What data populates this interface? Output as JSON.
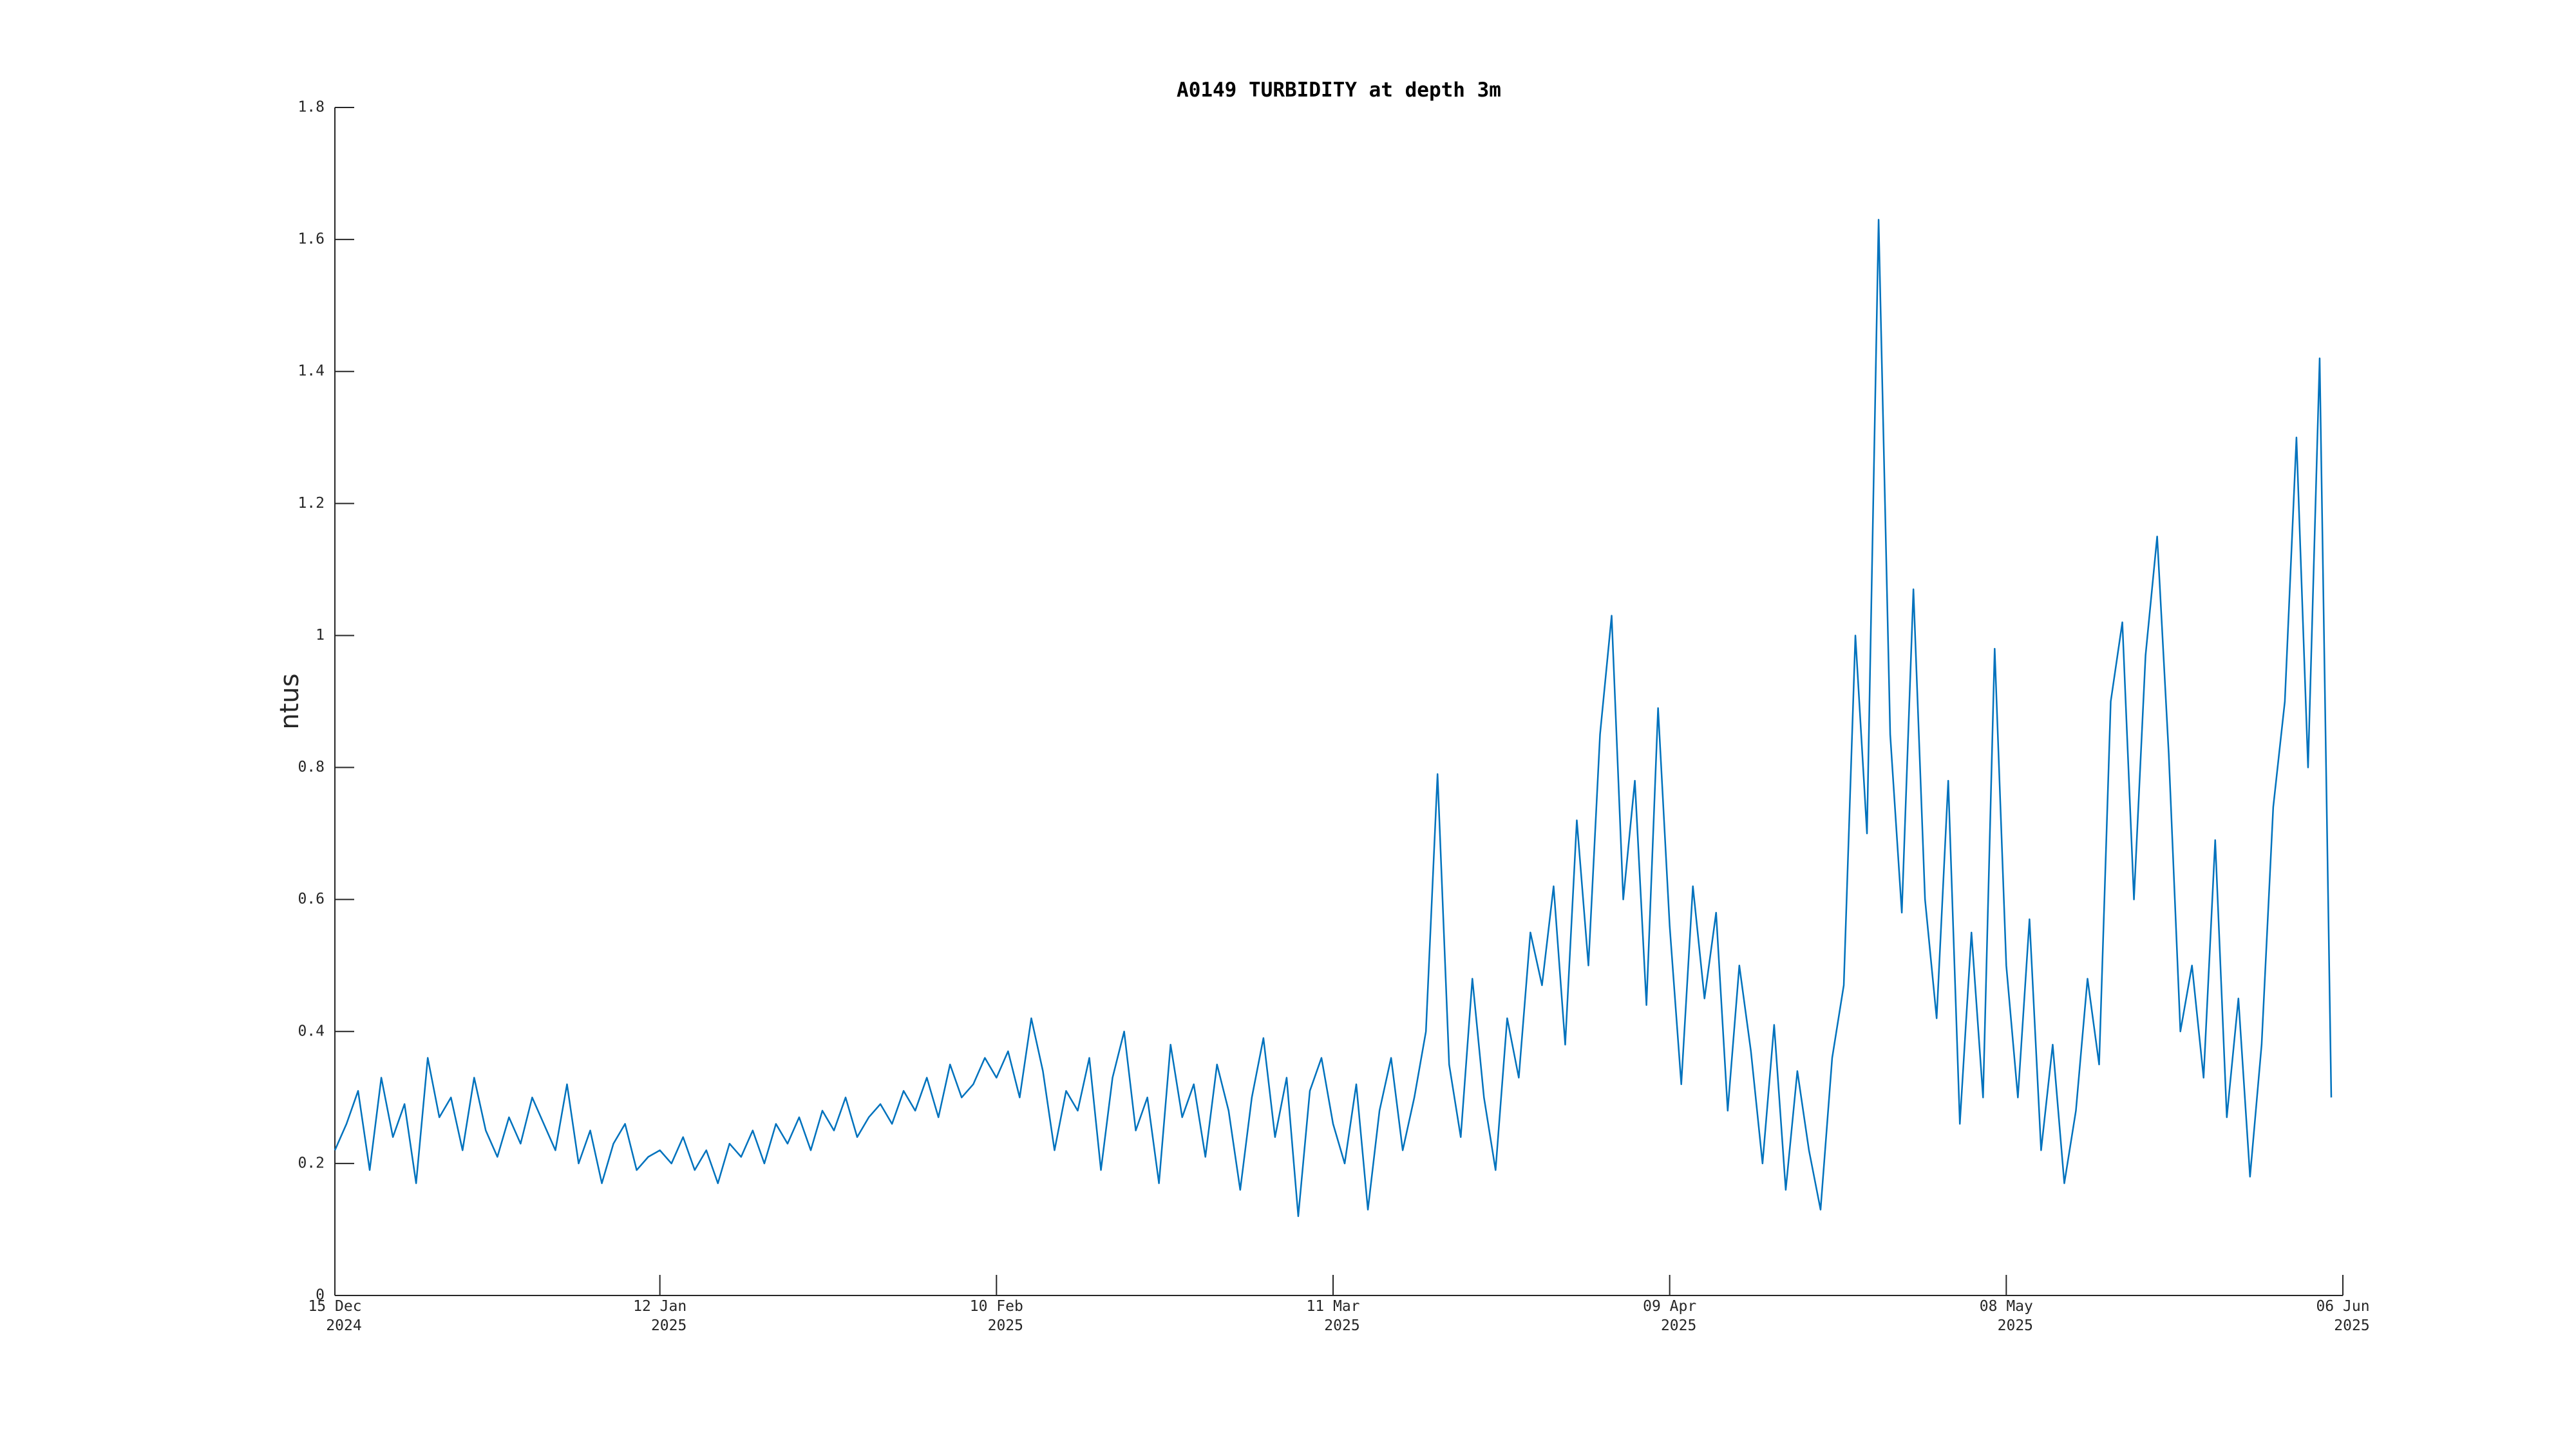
{
  "chart_data": {
    "type": "line",
    "title": "A0149 TURBIDITY at depth 3m",
    "ylabel": "ntus",
    "color": "#0072bd",
    "x": [
      "2024-12-15",
      "2024-12-16",
      "2024-12-17",
      "2024-12-18",
      "2024-12-19",
      "2024-12-20",
      "2024-12-21",
      "2024-12-22",
      "2024-12-23",
      "2024-12-24",
      "2024-12-25",
      "2024-12-26",
      "2024-12-27",
      "2024-12-28",
      "2024-12-29",
      "2024-12-30",
      "2024-12-31",
      "2025-01-01",
      "2025-01-02",
      "2025-01-03",
      "2025-01-04",
      "2025-01-05",
      "2025-01-06",
      "2025-01-07",
      "2025-01-08",
      "2025-01-09",
      "2025-01-10",
      "2025-01-11",
      "2025-01-12",
      "2025-01-13",
      "2025-01-14",
      "2025-01-15",
      "2025-01-16",
      "2025-01-17",
      "2025-01-18",
      "2025-01-19",
      "2025-01-20",
      "2025-01-21",
      "2025-01-22",
      "2025-01-23",
      "2025-01-24",
      "2025-01-25",
      "2025-01-26",
      "2025-01-27",
      "2025-01-28",
      "2025-01-29",
      "2025-01-30",
      "2025-01-31",
      "2025-02-01",
      "2025-02-02",
      "2025-02-03",
      "2025-02-04",
      "2025-02-05",
      "2025-02-06",
      "2025-02-07",
      "2025-02-08",
      "2025-02-09",
      "2025-02-10",
      "2025-02-11",
      "2025-02-12",
      "2025-02-13",
      "2025-02-14",
      "2025-02-15",
      "2025-02-16",
      "2025-02-17",
      "2025-02-18",
      "2025-02-19",
      "2025-02-20",
      "2025-02-21",
      "2025-02-22",
      "2025-02-23",
      "2025-02-24",
      "2025-02-25",
      "2025-02-26",
      "2025-02-27",
      "2025-02-28",
      "2025-03-01",
      "2025-03-02",
      "2025-03-03",
      "2025-03-04",
      "2025-03-05",
      "2025-03-06",
      "2025-03-07",
      "2025-03-08",
      "2025-03-09",
      "2025-03-10",
      "2025-03-11",
      "2025-03-12",
      "2025-03-13",
      "2025-03-14",
      "2025-03-15",
      "2025-03-16",
      "2025-03-17",
      "2025-03-18",
      "2025-03-19",
      "2025-03-20",
      "2025-03-21",
      "2025-03-22",
      "2025-03-23",
      "2025-03-24",
      "2025-03-25",
      "2025-03-26",
      "2025-03-27",
      "2025-03-28",
      "2025-03-29",
      "2025-03-30",
      "2025-03-31",
      "2025-04-01",
      "2025-04-02",
      "2025-04-03",
      "2025-04-04",
      "2025-04-05",
      "2025-04-06",
      "2025-04-07",
      "2025-04-08",
      "2025-04-09",
      "2025-04-10",
      "2025-04-11",
      "2025-04-12",
      "2025-04-13",
      "2025-04-14",
      "2025-04-15",
      "2025-04-16",
      "2025-04-17",
      "2025-04-18",
      "2025-04-19",
      "2025-04-20",
      "2025-04-21",
      "2025-04-22",
      "2025-04-23",
      "2025-04-24",
      "2025-04-25",
      "2025-04-26",
      "2025-04-27",
      "2025-04-28",
      "2025-04-29",
      "2025-04-30",
      "2025-05-01",
      "2025-05-02",
      "2025-05-03",
      "2025-05-04",
      "2025-05-05",
      "2025-05-06",
      "2025-05-07",
      "2025-05-08",
      "2025-05-09",
      "2025-05-10",
      "2025-05-11",
      "2025-05-12",
      "2025-05-13",
      "2025-05-14",
      "2025-05-15",
      "2025-05-16",
      "2025-05-17",
      "2025-05-18",
      "2025-05-19",
      "2025-05-20",
      "2025-05-21",
      "2025-05-22",
      "2025-05-23",
      "2025-05-24",
      "2025-05-25",
      "2025-05-26",
      "2025-05-27",
      "2025-05-28",
      "2025-05-29",
      "2025-05-30",
      "2025-05-31",
      "2025-06-01",
      "2025-06-02",
      "2025-06-03",
      "2025-06-04",
      "2025-06-05"
    ],
    "values": [
      0.22,
      0.26,
      0.31,
      0.19,
      0.33,
      0.24,
      0.29,
      0.17,
      0.36,
      0.27,
      0.3,
      0.22,
      0.33,
      0.25,
      0.21,
      0.27,
      0.23,
      0.3,
      0.26,
      0.22,
      0.32,
      0.2,
      0.25,
      0.17,
      0.23,
      0.26,
      0.19,
      0.21,
      0.22,
      0.2,
      0.24,
      0.19,
      0.22,
      0.17,
      0.23,
      0.21,
      0.25,
      0.2,
      0.26,
      0.23,
      0.27,
      0.22,
      0.28,
      0.25,
      0.3,
      0.24,
      0.27,
      0.29,
      0.26,
      0.31,
      0.28,
      0.33,
      0.27,
      0.35,
      0.3,
      0.32,
      0.36,
      0.33,
      0.37,
      0.3,
      0.42,
      0.34,
      0.22,
      0.31,
      0.28,
      0.36,
      0.19,
      0.33,
      0.4,
      0.25,
      0.3,
      0.17,
      0.38,
      0.27,
      0.32,
      0.21,
      0.35,
      0.28,
      0.16,
      0.3,
      0.39,
      0.24,
      0.33,
      0.12,
      0.31,
      0.36,
      0.26,
      0.2,
      0.32,
      0.13,
      0.28,
      0.36,
      0.22,
      0.3,
      0.4,
      0.79,
      0.35,
      0.24,
      0.48,
      0.3,
      0.19,
      0.42,
      0.33,
      0.55,
      0.47,
      0.62,
      0.38,
      0.72,
      0.5,
      0.85,
      1.03,
      0.6,
      0.78,
      0.44,
      0.89,
      0.56,
      0.32,
      0.62,
      0.45,
      0.58,
      0.28,
      0.5,
      0.37,
      0.2,
      0.41,
      0.16,
      0.34,
      0.22,
      0.13,
      0.36,
      0.47,
      1.0,
      0.7,
      1.63,
      0.85,
      0.58,
      1.07,
      0.6,
      0.42,
      0.78,
      0.26,
      0.55,
      0.3,
      0.98,
      0.5,
      0.3,
      0.57,
      0.22,
      0.38,
      0.17,
      0.28,
      0.48,
      0.35,
      0.9,
      1.02,
      0.6,
      0.97,
      1.15,
      0.82,
      0.4,
      0.5,
      0.33,
      0.69,
      0.27,
      0.45,
      0.18,
      0.38,
      0.74,
      0.9,
      1.3,
      0.8,
      1.42,
      0.3
    ],
    "xlim": [
      "2024-12-15",
      "2025-06-06"
    ],
    "xticks": [
      {
        "value": "2024-12-15",
        "label": [
          "15 Dec",
          "2024"
        ]
      },
      {
        "value": "2025-01-12",
        "label": [
          "12 Jan",
          "2025"
        ]
      },
      {
        "value": "2025-02-10",
        "label": [
          "10 Feb",
          "2025"
        ]
      },
      {
        "value": "2025-03-11",
        "label": [
          "11 Mar",
          "2025"
        ]
      },
      {
        "value": "2025-04-09",
        "label": [
          "09 Apr",
          "2025"
        ]
      },
      {
        "value": "2025-05-08",
        "label": [
          "08 May",
          "2025"
        ]
      },
      {
        "value": "2025-06-06",
        "label": [
          "06 Jun",
          "2025"
        ]
      }
    ],
    "ylim": [
      0,
      1.8
    ],
    "yticks": [
      0,
      0.2,
      0.4,
      0.6,
      0.8,
      1,
      1.2,
      1.4,
      1.6,
      1.8
    ]
  }
}
